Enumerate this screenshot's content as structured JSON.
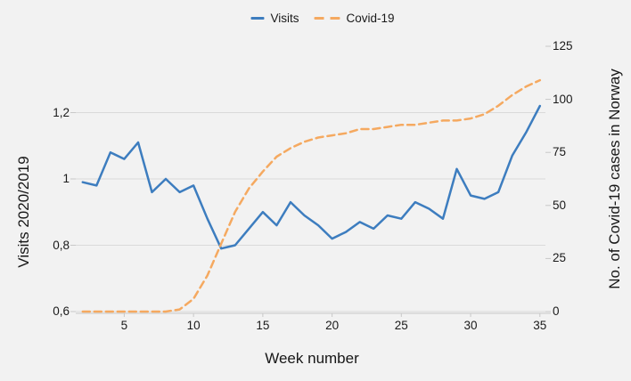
{
  "chart": {
    "background": "#f2f2f2",
    "grid": {
      "color": "#dadada",
      "axis_line_color": "#c8c8c8"
    },
    "legend": {
      "items": [
        {
          "label": "Visits",
          "color": "#3d7dbf",
          "style": "solid"
        },
        {
          "label": "Covid-19",
          "color": "#f5a960",
          "style": "dashed"
        }
      ]
    },
    "axes": {
      "x": {
        "label": "Week number",
        "ticks": [
          5,
          10,
          15,
          20,
          25,
          30,
          35
        ],
        "range": [
          1.5,
          35.4
        ]
      },
      "y_left": {
        "label": "Visits 2020/2019",
        "ticks": [
          0.6,
          0.8,
          1.0,
          1.2
        ],
        "tick_labels": [
          "0,6",
          "0,8",
          "1",
          "1,2"
        ],
        "range": [
          0.6,
          1.4
        ]
      },
      "y_right": {
        "label": "No. of Covid-19 cases in Norway",
        "ticks": [
          0,
          25,
          50,
          75,
          100,
          125
        ],
        "range": [
          0,
          125
        ]
      }
    }
  },
  "chart_data": {
    "type": "line",
    "xlabel": "Week number",
    "ylabel_left": "Visits 2020/2019",
    "ylabel_right": "No. of Covid-19 cases in Norway",
    "legend_position": "top-center",
    "grid": "horizontal",
    "x_range": [
      2,
      35
    ],
    "ylim_left": [
      0.6,
      1.4
    ],
    "ylim_right": [
      0,
      125
    ],
    "x": [
      2,
      3,
      4,
      5,
      6,
      7,
      8,
      9,
      10,
      11,
      12,
      13,
      14,
      15,
      16,
      17,
      18,
      19,
      20,
      21,
      22,
      23,
      24,
      25,
      26,
      27,
      28,
      29,
      30,
      31,
      32,
      33,
      34,
      35
    ],
    "series": [
      {
        "name": "Visits",
        "axis": "left",
        "color": "#3d7dbf",
        "dash": "solid",
        "values": [
          0.99,
          0.98,
          1.08,
          1.06,
          1.11,
          0.96,
          1.0,
          0.96,
          0.98,
          0.88,
          0.79,
          0.8,
          0.85,
          0.9,
          0.86,
          0.93,
          0.89,
          0.86,
          0.82,
          0.84,
          0.87,
          0.85,
          0.89,
          0.88,
          0.93,
          0.91,
          0.88,
          1.03,
          0.95,
          0.94,
          0.96,
          1.07,
          1.14,
          1.22
        ]
      },
      {
        "name": "Covid-19",
        "axis": "right",
        "color": "#f5a960",
        "dash": "dashed",
        "values": [
          0,
          0,
          0,
          0,
          0,
          0,
          0,
          1,
          6,
          17,
          32,
          47,
          58,
          66,
          73,
          77,
          80,
          82,
          83,
          84,
          86,
          86,
          87,
          88,
          88,
          89,
          90,
          90,
          91,
          93,
          97,
          102,
          106,
          109
        ]
      }
    ]
  }
}
